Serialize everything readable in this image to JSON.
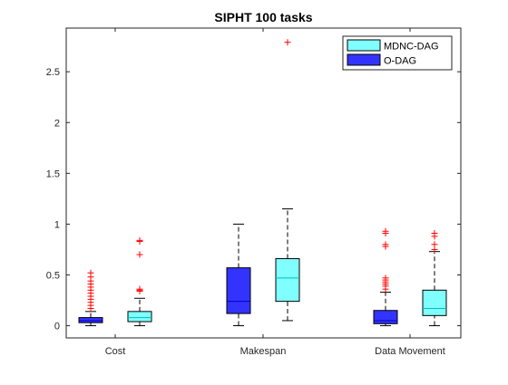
{
  "chart_data": {
    "type": "box",
    "title": "SIPHT 100 tasks",
    "xlabel": "",
    "ylabel": "",
    "categories": [
      "Cost",
      "Makespan",
      "Data Movement"
    ],
    "ylim": [
      -0.12,
      2.93
    ],
    "yticks": [
      {
        "value": 0,
        "label": "0"
      },
      {
        "value": 0.5,
        "label": "0.5"
      },
      {
        "value": 1,
        "label": "1"
      },
      {
        "value": 1.5,
        "label": "1.5"
      },
      {
        "value": 2,
        "label": "2"
      },
      {
        "value": 2.5,
        "label": "2.5"
      }
    ],
    "grid": false,
    "legend": "top-right",
    "series": [
      {
        "name": "MDNC-DAG",
        "color": "#80ffff",
        "boxes": [
          {
            "category": "Cost",
            "min": 0.0,
            "q1": 0.04,
            "median": 0.08,
            "q3": 0.14,
            "max": 0.27,
            "outliers": [
              0.34,
              0.35,
              0.36,
              0.7,
              0.83,
              0.84
            ]
          },
          {
            "category": "Makespan",
            "min": 0.05,
            "q1": 0.24,
            "median": 0.47,
            "q3": 0.66,
            "max": 1.15,
            "outliers": [
              2.79
            ]
          },
          {
            "category": "Data Movement",
            "min": 0.0,
            "q1": 0.1,
            "median": 0.17,
            "q3": 0.35,
            "max": 0.73,
            "outliers": [
              0.75,
              0.8,
              0.88,
              0.91
            ]
          }
        ]
      },
      {
        "name": "O-DAG",
        "color": "#3333ff",
        "boxes": [
          {
            "category": "Cost",
            "min": 0.0,
            "q1": 0.03,
            "median": 0.05,
            "q3": 0.08,
            "max": 0.14,
            "outliers": [
              0.17,
              0.2,
              0.23,
              0.26,
              0.29,
              0.32,
              0.35,
              0.38,
              0.41,
              0.44,
              0.48,
              0.52
            ]
          },
          {
            "category": "Makespan",
            "min": 0.0,
            "q1": 0.12,
            "median": 0.24,
            "q3": 0.57,
            "max": 1.0,
            "outliers": []
          },
          {
            "category": "Data Movement",
            "min": 0.0,
            "q1": 0.02,
            "median": 0.05,
            "q3": 0.15,
            "max": 0.33,
            "outliers": [
              0.36,
              0.39,
              0.41,
              0.43,
              0.45,
              0.47,
              0.78,
              0.8,
              0.91,
              0.93
            ]
          }
        ]
      }
    ],
    "outlier_marker": "+",
    "outlier_color": "#ff0000",
    "median_color": {
      "MDNC-DAG": "#00bfbf",
      "O-DAG": "#0000bf"
    }
  }
}
